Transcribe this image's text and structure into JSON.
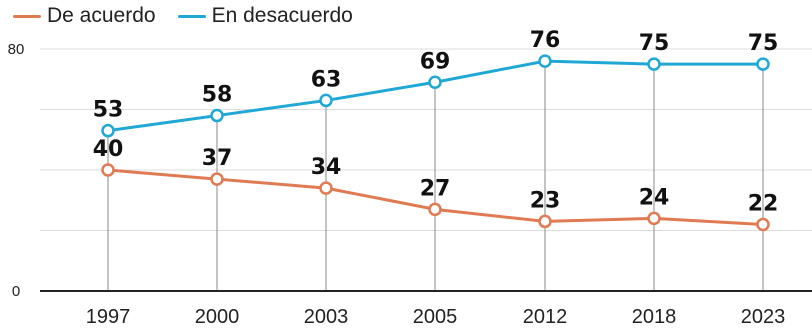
{
  "chart_data": {
    "type": "line",
    "title": "",
    "xlabel": "",
    "ylabel": "",
    "categories": [
      "1997",
      "2000",
      "2003",
      "2005",
      "2012",
      "2018",
      "2023"
    ],
    "series": [
      {
        "name": "De acuerdo",
        "color": "#e07a52",
        "values": [
          40,
          37,
          34,
          27,
          23,
          24,
          22
        ]
      },
      {
        "name": "En desacuerdo",
        "color": "#1fa8d6",
        "values": [
          53,
          58,
          63,
          69,
          76,
          75,
          75
        ]
      }
    ],
    "ylim": [
      0,
      80
    ],
    "yticks": [
      "0",
      "80"
    ],
    "legend": "top-left",
    "grid": true
  }
}
